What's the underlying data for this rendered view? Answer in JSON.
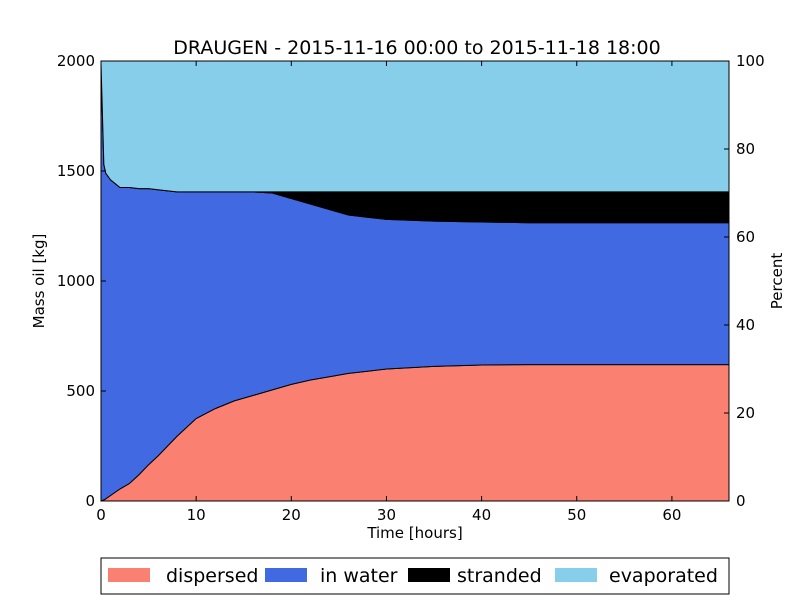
{
  "chart_data": {
    "type": "area",
    "stacked": true,
    "title": "DRAUGEN - 2015-11-16 00:00 to 2015-11-18 18:00",
    "xlabel": "Time  [hours]",
    "ylabel": "Mass oil  [kg]",
    "ylabel_right": "Percent",
    "xlim": [
      0,
      66
    ],
    "ylim": [
      0,
      2000
    ],
    "ylim_right": [
      0,
      100
    ],
    "xticks": [
      0,
      10,
      20,
      30,
      40,
      50,
      60
    ],
    "yticks": [
      0,
      500,
      1000,
      1500,
      2000
    ],
    "yticks_right": [
      0,
      20,
      40,
      60,
      80,
      100
    ],
    "grid": false,
    "legend_position": "bottom",
    "x": [
      0,
      0.3,
      0.5,
      1,
      2,
      3,
      4,
      5,
      6,
      8,
      10,
      12,
      14,
      16,
      18,
      20,
      22,
      24,
      26,
      28,
      30,
      35,
      40,
      45,
      50,
      55,
      60,
      66
    ],
    "series": [
      {
        "name": "dispersed",
        "color": "#fa8072",
        "values": [
          0,
          5,
          10,
          25,
          55,
          80,
          120,
          165,
          205,
          295,
          375,
          420,
          455,
          480,
          505,
          530,
          550,
          565,
          580,
          590,
          600,
          612,
          618,
          620,
          620,
          620,
          620,
          620
        ]
      },
      {
        "name": "in water",
        "color": "#4169e1",
        "values": [
          1990,
          1525,
          1480,
          1435,
          1370,
          1345,
          1300,
          1255,
          1210,
          1110,
          1030,
          985,
          950,
          925,
          895,
          845,
          800,
          760,
          720,
          700,
          680,
          660,
          650,
          645,
          645,
          645,
          645,
          645
        ]
      },
      {
        "name": "stranded",
        "color": "#000000",
        "values": [
          0,
          0,
          0,
          0,
          0,
          0,
          0,
          0,
          0,
          0,
          0,
          0,
          0,
          0,
          5,
          30,
          55,
          80,
          105,
          115,
          125,
          133,
          137,
          140,
          140,
          140,
          140,
          140
        ]
      },
      {
        "name": "evaporated",
        "color": "#87ceeb",
        "values": [
          10,
          470,
          510,
          540,
          575,
          575,
          580,
          580,
          585,
          595,
          595,
          595,
          595,
          595,
          595,
          595,
          595,
          595,
          595,
          595,
          595,
          595,
          595,
          595,
          595,
          595,
          595,
          595
        ]
      }
    ]
  }
}
